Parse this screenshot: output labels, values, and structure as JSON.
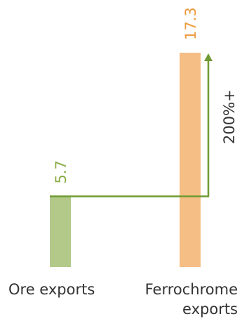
{
  "chart_data": {
    "type": "bar",
    "title": "",
    "xlabel": "",
    "ylabel": "",
    "categories": [
      "Ore exports",
      "Ferrochrome exports"
    ],
    "category_label_lines": [
      [
        "Ore exports"
      ],
      [
        "Ferrochrome",
        "exports"
      ]
    ],
    "values": [
      5.7,
      17.3
    ],
    "value_labels": [
      "5.7",
      "17.3"
    ],
    "colors": [
      "#b3c98a",
      "#f5be85"
    ],
    "label_colors": [
      "#8aac46",
      "#ee9a3e"
    ],
    "ylim": [
      0,
      17.3
    ],
    "grid": false,
    "legend": "none",
    "annotation": {
      "text": "200%+",
      "from_category": 0,
      "to_category": 1,
      "color": "#6f9a33"
    }
  }
}
